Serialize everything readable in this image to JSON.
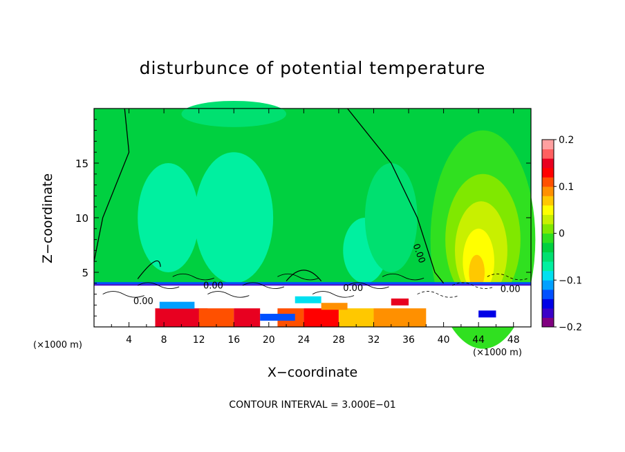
{
  "chart_data": {
    "type": "heatmap",
    "title": "disturbunce of potential temperature",
    "xlabel": "X−coordinate",
    "ylabel": "Z−coordinate",
    "x_unit": "(×1000 m)",
    "xlim": [
      0,
      50
    ],
    "ylim": [
      0,
      20
    ],
    "x_ticks": [
      4,
      8,
      12,
      16,
      20,
      24,
      28,
      32,
      36,
      40,
      44,
      48
    ],
    "y_ticks": [
      5,
      10,
      15
    ],
    "colorbar": {
      "range": [
        -0.2,
        0.2
      ],
      "tick_labels": [
        "0.2",
        "0.1",
        "0",
        "−0.1",
        "−0.2"
      ],
      "tick_values": [
        0.2,
        0.1,
        0,
        -0.1,
        -0.2
      ],
      "colors": [
        "#800080",
        "#3a00c8",
        "#0000e6",
        "#0050ff",
        "#00a0ff",
        "#00e0f0",
        "#00f0a0",
        "#00e070",
        "#00d040",
        "#30e020",
        "#80e800",
        "#c8f000",
        "#ffff00",
        "#ffc800",
        "#ff9000",
        "#ff5000",
        "#ff0000",
        "#e80020",
        "#ff6060",
        "#ffa0a0"
      ]
    },
    "contour_labels": [
      "0.00",
      "0.00",
      "0.00",
      "0.00",
      "0.00"
    ],
    "footnote": "CONTOUR INTERVAL = 3.000E−01"
  }
}
